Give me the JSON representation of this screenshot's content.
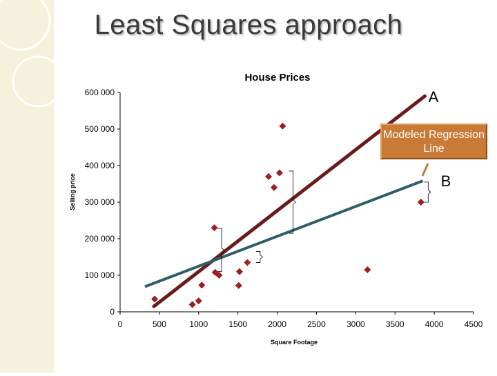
{
  "slide": {
    "title": "Least Squares approach"
  },
  "chart_data": {
    "type": "scatter",
    "title": "House Prices",
    "xlabel": "Square Footage",
    "ylabel": "Selling price",
    "xlim": [
      0,
      4500
    ],
    "ylim": [
      0,
      600000
    ],
    "x_ticks": [
      "0",
      "500",
      "1000",
      "1500",
      "2000",
      "2500",
      "3000",
      "3500",
      "4000",
      "4500"
    ],
    "y_ticks": [
      "0",
      "100 000",
      "200 000",
      "300 000",
      "400 000",
      "500 000",
      "600 000"
    ],
    "points": [
      {
        "x": 440,
        "y": 35000
      },
      {
        "x": 920,
        "y": 20000
      },
      {
        "x": 1000,
        "y": 30000
      },
      {
        "x": 1040,
        "y": 73000
      },
      {
        "x": 1200,
        "y": 230000
      },
      {
        "x": 1210,
        "y": 108000
      },
      {
        "x": 1260,
        "y": 100000
      },
      {
        "x": 1510,
        "y": 72000
      },
      {
        "x": 1520,
        "y": 110000
      },
      {
        "x": 1620,
        "y": 135000
      },
      {
        "x": 1890,
        "y": 370000
      },
      {
        "x": 1960,
        "y": 340000
      },
      {
        "x": 2030,
        "y": 380000
      },
      {
        "x": 2070,
        "y": 508000
      },
      {
        "x": 3150,
        "y": 115000
      },
      {
        "x": 3830,
        "y": 300000
      }
    ],
    "series": [
      {
        "name": "A",
        "color": "#6b1a1a",
        "line": [
          [
            430,
            15000
          ],
          [
            3880,
            590000
          ]
        ]
      },
      {
        "name": "B",
        "color": "#2e5f66",
        "line": [
          [
            330,
            70000
          ],
          [
            3840,
            357000
          ]
        ]
      }
    ],
    "annotations": {
      "callout": "Modeled Regression Line"
    },
    "marker_color": "#b01a1a",
    "grid": false
  }
}
